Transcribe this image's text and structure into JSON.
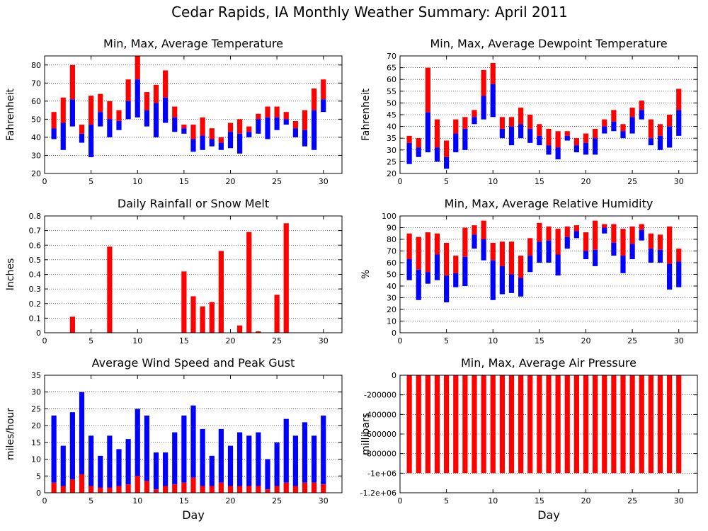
{
  "page_title": "Cedar Rapids, IA Monthly Weather Summary: April 2011",
  "colors": {
    "red": "#ff0000",
    "blue": "#0000ff",
    "grid": "#000000"
  },
  "chart_data": [
    {
      "id": "temp",
      "type": "bar",
      "title": "Min, Max, Average Temperature",
      "ylabel": "Fahrenheit",
      "xlabel": "",
      "xlim": [
        0,
        32
      ],
      "ylim": [
        20,
        85
      ],
      "yticks": [
        20,
        30,
        40,
        50,
        60,
        70,
        80
      ],
      "xticks": [
        0,
        5,
        10,
        15,
        20,
        25,
        30
      ],
      "style": "minmaxavg",
      "x": [
        1,
        2,
        3,
        4,
        5,
        6,
        7,
        8,
        9,
        10,
        11,
        12,
        13,
        14,
        15,
        16,
        17,
        18,
        19,
        20,
        21,
        22,
        23,
        24,
        25,
        26,
        27,
        28,
        29,
        30
      ],
      "min": [
        39,
        33,
        46,
        37,
        29,
        46,
        40,
        44,
        50,
        51,
        46,
        40,
        48,
        43,
        42,
        32,
        33,
        35,
        33,
        34,
        31,
        40,
        42,
        39,
        44,
        47,
        40,
        35,
        33,
        54
      ],
      "avg": [
        45,
        48,
        61,
        42,
        47,
        54,
        50,
        49,
        60,
        72,
        55,
        59,
        62,
        51,
        45,
        39,
        41,
        39,
        37,
        43,
        42,
        43,
        50,
        51,
        51,
        50,
        45,
        44,
        55,
        61
      ],
      "max": [
        54,
        62,
        80,
        47,
        63,
        64,
        60,
        55,
        72,
        85,
        65,
        69,
        77,
        57,
        47,
        47,
        51,
        45,
        40,
        48,
        50,
        46,
        53,
        57,
        57,
        54,
        49,
        55,
        67,
        72
      ]
    },
    {
      "id": "dewpoint",
      "type": "bar",
      "title": "Min, Max, Average Dewpoint Temperature",
      "ylabel": "Fahrenheit",
      "xlabel": "",
      "xlim": [
        0,
        32
      ],
      "ylim": [
        20,
        70
      ],
      "yticks": [
        20,
        25,
        30,
        35,
        40,
        45,
        50,
        55,
        60,
        65,
        70
      ],
      "xticks": [
        0,
        5,
        10,
        15,
        20,
        25,
        30
      ],
      "style": "minmaxavg",
      "x": [
        1,
        2,
        3,
        4,
        5,
        6,
        7,
        8,
        9,
        10,
        11,
        12,
        13,
        14,
        15,
        16,
        17,
        18,
        19,
        20,
        21,
        22,
        23,
        24,
        25,
        26,
        27,
        28,
        29,
        30
      ],
      "min": [
        24,
        27,
        29,
        25,
        22,
        29,
        30,
        41,
        43,
        44,
        35,
        32,
        35,
        33,
        32,
        28,
        26,
        34,
        29,
        28,
        28,
        37,
        38,
        35,
        37,
        43,
        32,
        30,
        31,
        36
      ],
      "avg": [
        33,
        31,
        46,
        31,
        27,
        37,
        39,
        44,
        53,
        58,
        39,
        40,
        41,
        39,
        36,
        32,
        31,
        36,
        32,
        33,
        35,
        40,
        42,
        38,
        44,
        47,
        35,
        36,
        40,
        47
      ],
      "max": [
        36,
        35,
        65,
        43,
        34,
        43,
        44,
        47,
        64,
        67,
        44,
        44,
        48,
        45,
        41,
        39,
        38,
        38,
        35,
        37,
        39,
        43,
        47,
        41,
        48,
        51,
        43,
        41,
        45,
        56
      ]
    },
    {
      "id": "rain",
      "type": "bar",
      "title": "Daily Rainfall or Snow Melt",
      "ylabel": "Inches",
      "xlabel": "",
      "xlim": [
        0,
        32
      ],
      "ylim": [
        0,
        0.8
      ],
      "yticks": [
        0,
        0.1,
        0.2,
        0.3,
        0.4,
        0.5,
        0.6,
        0.7,
        0.8
      ],
      "ytick_labels": [
        "0",
        "0.1",
        "0.2",
        "0.3",
        "0.4",
        "0.5",
        "0.6",
        "0.7",
        "0.8"
      ],
      "xticks": [
        0,
        5,
        10,
        15,
        20,
        25,
        30
      ],
      "style": "single",
      "x": [
        3,
        7,
        15,
        16,
        17,
        18,
        19,
        21,
        22,
        23,
        25,
        26
      ],
      "values": [
        0.11,
        0.59,
        0.42,
        0.25,
        0.18,
        0.21,
        0.56,
        0.05,
        0.69,
        0.01,
        0.26,
        0.75
      ]
    },
    {
      "id": "humidity",
      "type": "bar",
      "title": "Min, Max, Average Relative Humidity",
      "ylabel": "%",
      "xlabel": "",
      "xlim": [
        0,
        32
      ],
      "ylim": [
        0,
        100
      ],
      "yticks": [
        0,
        10,
        20,
        30,
        40,
        50,
        60,
        70,
        80,
        90,
        100
      ],
      "xticks": [
        0,
        5,
        10,
        15,
        20,
        25,
        30
      ],
      "style": "minmaxavg",
      "x": [
        1,
        2,
        3,
        4,
        5,
        6,
        7,
        8,
        9,
        10,
        11,
        12,
        13,
        14,
        15,
        16,
        17,
        18,
        19,
        20,
        21,
        22,
        23,
        24,
        25,
        26,
        27,
        28,
        29,
        30
      ],
      "min": [
        45,
        28,
        42,
        45,
        26,
        39,
        40,
        72,
        62,
        28,
        33,
        34,
        31,
        52,
        60,
        60,
        49,
        72,
        81,
        63,
        57,
        85,
        66,
        51,
        63,
        79,
        60,
        60,
        37,
        39
      ],
      "avg": [
        63,
        54,
        52,
        67,
        49,
        51,
        65,
        84,
        80,
        62,
        57,
        50,
        47,
        66,
        78,
        79,
        67,
        82,
        87,
        70,
        71,
        90,
        77,
        66,
        76,
        88,
        72,
        71,
        59,
        61
      ],
      "max": [
        85,
        82,
        86,
        85,
        77,
        66,
        90,
        92,
        96,
        77,
        78,
        78,
        66,
        81,
        94,
        91,
        89,
        91,
        92,
        86,
        96,
        93,
        93,
        89,
        91,
        93,
        85,
        84,
        91,
        72
      ]
    },
    {
      "id": "wind",
      "type": "bar",
      "title": "Average Wind Speed and Peak Gust",
      "ylabel": "miles/hour",
      "xlabel": "Day",
      "xlim": [
        0,
        32
      ],
      "ylim": [
        0,
        35
      ],
      "yticks": [
        0,
        5,
        10,
        15,
        20,
        25,
        30,
        35
      ],
      "xticks": [
        0,
        5,
        10,
        15,
        20,
        25,
        30
      ],
      "style": "stacked",
      "x": [
        1,
        2,
        3,
        4,
        5,
        6,
        7,
        8,
        9,
        10,
        11,
        12,
        13,
        14,
        15,
        16,
        17,
        18,
        19,
        20,
        21,
        22,
        23,
        24,
        25,
        26,
        27,
        28,
        29,
        30
      ],
      "avg": [
        3,
        2,
        4,
        5.5,
        2,
        1.5,
        1.5,
        2,
        2.5,
        5,
        3.5,
        1,
        2,
        2.5,
        3,
        4.5,
        2,
        2,
        3,
        2,
        2,
        2,
        2,
        1,
        2,
        3,
        2,
        3,
        3,
        2.5
      ],
      "gust": [
        23,
        14,
        24,
        30,
        17,
        11,
        17,
        13,
        16,
        25,
        23,
        12,
        12,
        18,
        23,
        26,
        19,
        11,
        19,
        14,
        18,
        17,
        18,
        10,
        15,
        22,
        17,
        21,
        17,
        23
      ]
    },
    {
      "id": "pressure",
      "type": "bar",
      "title": "Min, Max, Average Air Pressure",
      "ylabel": "millibars",
      "xlabel": "Day",
      "xlim": [
        0,
        32
      ],
      "ylim": [
        -1200000,
        0
      ],
      "yticks": [
        0,
        -200000,
        -400000,
        -600000,
        -800000,
        -1000000,
        -1200000
      ],
      "ytick_labels": [
        "0",
        "-200000",
        "-400000",
        "-600000",
        "-800000",
        "-1e+06",
        "-1.2e+06"
      ],
      "xticks": [
        0,
        5,
        10,
        15,
        20,
        25,
        30
      ],
      "style": "single",
      "x": [
        1,
        2,
        3,
        4,
        5,
        6,
        7,
        8,
        9,
        10,
        11,
        12,
        13,
        14,
        15,
        16,
        17,
        18,
        19,
        20,
        21,
        22,
        23,
        24,
        25,
        26,
        27,
        28,
        29,
        30
      ],
      "values": [
        -1000000,
        -1000000,
        -1000000,
        -1000000,
        -1000000,
        -1000000,
        -1000000,
        -1000000,
        -1000000,
        -1000000,
        -1000000,
        -1000000,
        -1000000,
        -1000000,
        -1000000,
        -1000000,
        -1000000,
        -1000000,
        -1000000,
        -1000000,
        -1000000,
        -1000000,
        -1000000,
        -1000000,
        -1000000,
        -1000000,
        -1000000,
        -1000000,
        -1000000,
        -1000000
      ]
    }
  ]
}
